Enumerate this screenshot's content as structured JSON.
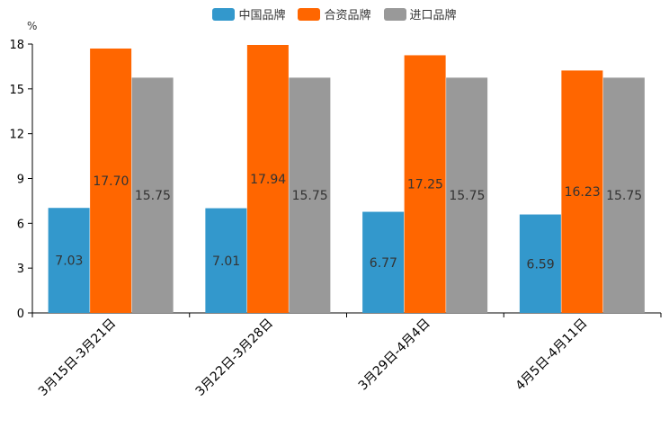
{
  "chart_data": {
    "type": "bar",
    "title": "",
    "unit_label": "%",
    "xlabel": "",
    "ylabel": "%",
    "ylim": [
      0,
      18
    ],
    "yticks": [
      0,
      3,
      6,
      9,
      12,
      15,
      18
    ],
    "grid": false,
    "legend_position": "top-center",
    "categories": [
      "3月15日-3月21日",
      "3月22日-3月28日",
      "3月29日-4月4日",
      "4月5日-4月11日"
    ],
    "series": [
      {
        "name": "中国品牌",
        "color": "#3398CC",
        "values": [
          7.03,
          7.01,
          6.77,
          6.59
        ]
      },
      {
        "name": "合资品牌",
        "color": "#FF6600",
        "values": [
          17.7,
          17.94,
          17.25,
          16.23
        ]
      },
      {
        "name": "进口品牌",
        "color": "#999999",
        "values": [
          15.75,
          15.75,
          15.75,
          15.75
        ]
      }
    ]
  }
}
